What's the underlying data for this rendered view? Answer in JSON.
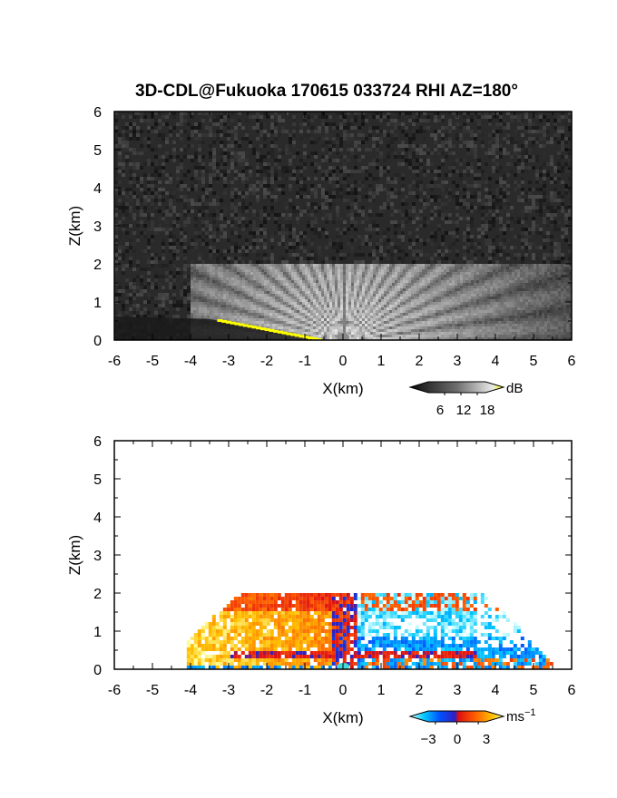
{
  "figure": {
    "title": "3D-CDL@Fukuoka 170615 033724 RHI AZ=180°"
  },
  "chart_data": [
    {
      "type": "heatmap",
      "panel": "reflectivity",
      "xlabel": "X(km)",
      "ylabel": "Z(km)",
      "xlim": [
        -6,
        6
      ],
      "ylim": [
        0,
        6
      ],
      "xticks": [
        "-6",
        "-5",
        "-4",
        "-3",
        "-2",
        "-1",
        "0",
        "1",
        "2",
        "3",
        "4",
        "5",
        "6"
      ],
      "yticks": [
        "0",
        "1",
        "2",
        "3",
        "4",
        "5",
        "6"
      ],
      "colorbar": {
        "unit": "dB",
        "ticks": [
          "6",
          "12",
          "18"
        ],
        "values": [
          6,
          12,
          18
        ],
        "range": [
          0,
          21
        ]
      },
      "background_noise": "dark gray speckle over full domain",
      "signal_top_km": 2.0,
      "signal_x_extent_km": [
        -4,
        6
      ],
      "ground_clutter": {
        "color": "#ffff00",
        "x_km": [
          -3.3,
          -0.7
        ],
        "z_km": [
          0.5,
          0.0
        ]
      }
    },
    {
      "type": "heatmap",
      "panel": "doppler_velocity",
      "xlabel": "X(km)",
      "ylabel": "Z(km)",
      "xlim": [
        -6,
        6
      ],
      "ylim": [
        0,
        6
      ],
      "xticks": [
        "-6",
        "-5",
        "-4",
        "-3",
        "-2",
        "-1",
        "0",
        "1",
        "2",
        "3",
        "4",
        "5",
        "6"
      ],
      "yticks": [
        "0",
        "1",
        "2",
        "3",
        "4",
        "5",
        "6"
      ],
      "colorbar": {
        "unit": "ms",
        "unit_exponent": "−1",
        "ticks": [
          "−3",
          "0",
          "3"
        ],
        "values": [
          -3,
          0,
          3
        ],
        "range": [
          -4,
          4
        ]
      },
      "signal_top_km": 2.0,
      "signal_x_extent_km": [
        -4.1,
        5.5
      ],
      "velocity_pattern": "positive (orange-yellow) for X<0, negative (blue) for X>0, red/blue layer near Z=0.5 km"
    }
  ]
}
